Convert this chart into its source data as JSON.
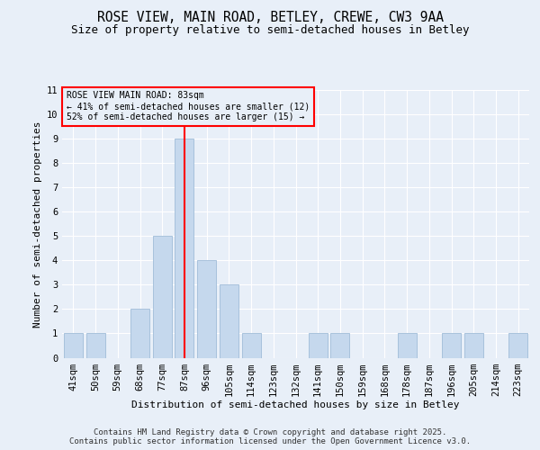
{
  "title1": "ROSE VIEW, MAIN ROAD, BETLEY, CREWE, CW3 9AA",
  "title2": "Size of property relative to semi-detached houses in Betley",
  "xlabel": "Distribution of semi-detached houses by size in Betley",
  "ylabel": "Number of semi-detached properties",
  "categories": [
    "41sqm",
    "50sqm",
    "59sqm",
    "68sqm",
    "77sqm",
    "87sqm",
    "96sqm",
    "105sqm",
    "114sqm",
    "123sqm",
    "132sqm",
    "141sqm",
    "150sqm",
    "159sqm",
    "168sqm",
    "178sqm",
    "187sqm",
    "196sqm",
    "205sqm",
    "214sqm",
    "223sqm"
  ],
  "values": [
    1,
    1,
    0,
    2,
    5,
    9,
    4,
    3,
    1,
    0,
    0,
    1,
    1,
    0,
    0,
    1,
    0,
    1,
    1,
    0,
    1
  ],
  "bar_color": "#c5d8ed",
  "bar_edge_color": "#a0bcd8",
  "red_line_index": 5,
  "annotation_title": "ROSE VIEW MAIN ROAD: 83sqm",
  "annotation_line1": "← 41% of semi-detached houses are smaller (12)",
  "annotation_line2": "52% of semi-detached houses are larger (15) →",
  "ylim_max": 11,
  "yticks": [
    0,
    1,
    2,
    3,
    4,
    5,
    6,
    7,
    8,
    9,
    10,
    11
  ],
  "footer1": "Contains HM Land Registry data © Crown copyright and database right 2025.",
  "footer2": "Contains public sector information licensed under the Open Government Licence v3.0.",
  "bg_color": "#e8eff8",
  "plot_bg_color": "#e8eff8",
  "grid_color": "#ffffff",
  "title1_fontsize": 10.5,
  "title2_fontsize": 9,
  "axis_fontsize": 8,
  "tick_fontsize": 7.5,
  "footer_fontsize": 6.5
}
